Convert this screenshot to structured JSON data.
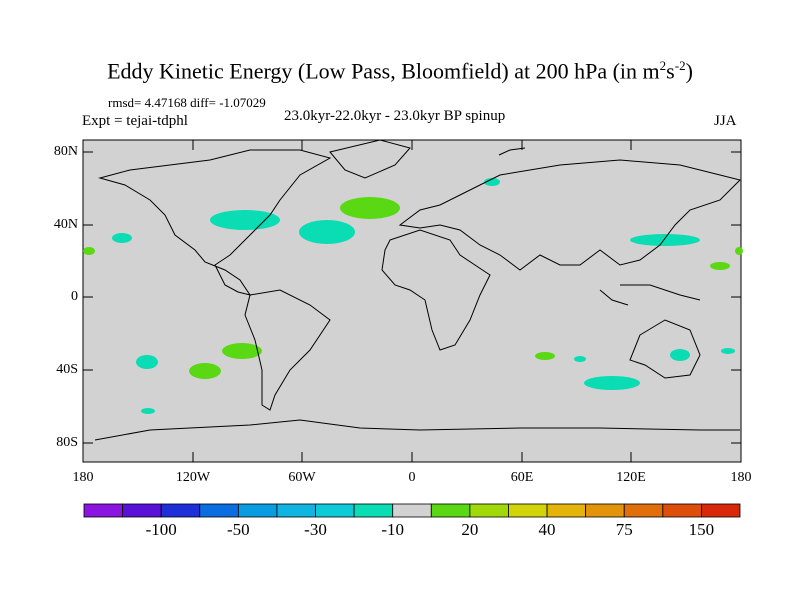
{
  "title": "Eddy Kinetic Energy (Low Pass, Bloomfield) at 200 hPa (in m",
  "title_sup1": "2",
  "title_mid": "s",
  "title_sup2": "-2",
  "title_end": ")",
  "stats": "rmsd= 4.47168 diff= -1.07029",
  "experiment": "Expt = tejai-tdphl",
  "center_string": "23.0kyr-22.0kyr - 23.0kyr BP spinup",
  "season": "JJA",
  "lat_labels": [
    "80N",
    "40N",
    "0",
    "40S",
    "80S"
  ],
  "lon_labels": [
    "180",
    "120W",
    "60W",
    "0",
    "60E",
    "120E",
    "180"
  ],
  "colorbar": {
    "colors": [
      "#8a14e0",
      "#5a12d8",
      "#2030d8",
      "#0a6ee0",
      "#0a9ce0",
      "#10b4e0",
      "#0ccad8",
      "#0adcb4",
      "#d2d2d2",
      "#5ad814",
      "#a0d80a",
      "#d2d40a",
      "#e4b40a",
      "#e2940a",
      "#e06e0a",
      "#dc4e0a",
      "#d8280a"
    ],
    "labels": [
      "-100",
      "-50",
      "-30",
      "-10",
      "20",
      "40",
      "75",
      "150"
    ]
  }
}
